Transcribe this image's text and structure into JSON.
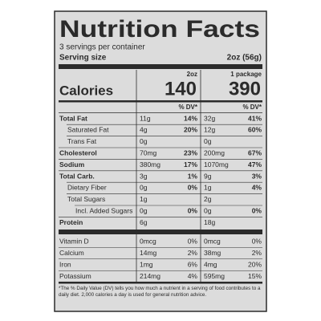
{
  "header": {
    "title": "Nutrition Facts",
    "servings": "3 servings per container",
    "serving_size_label": "Serving size",
    "serving_size": "2oz (56g)"
  },
  "columns": [
    "2oz",
    "1 package"
  ],
  "calories": {
    "label": "Calories",
    "values": [
      "140",
      "390"
    ]
  },
  "dv_header": [
    "% DV*",
    "% DV*"
  ],
  "nutrients": [
    {
      "name": "Total Fat",
      "amounts": [
        "11g",
        "32g"
      ],
      "dv": [
        "14%",
        "41%"
      ]
    },
    {
      "name": "Saturated Fat",
      "amounts": [
        "4g",
        "12g"
      ],
      "dv": [
        "20%",
        "60%"
      ]
    },
    {
      "name": "Trans Fat",
      "amounts": [
        "0g",
        "0g"
      ]
    },
    {
      "name": "Cholesterol",
      "amounts": [
        "70mg",
        "200mg"
      ],
      "dv": [
        "23%",
        "67%"
      ]
    },
    {
      "name": "Sodium",
      "amounts": [
        "380mg",
        "1070mg"
      ],
      "dv": [
        "17%",
        "47%"
      ]
    },
    {
      "name": "Total Carb.",
      "amounts": [
        "3g",
        "9g"
      ],
      "dv": [
        "1%",
        "3%"
      ]
    },
    {
      "name": "Dietary Fiber",
      "amounts": [
        "0g",
        "1g"
      ],
      "dv": [
        "0%",
        "4%"
      ]
    },
    {
      "name": "Total Sugars",
      "amounts": [
        "1g",
        "2g"
      ]
    },
    {
      "name": "Incl. Added Sugars",
      "amounts": [
        "0g",
        "0g"
      ],
      "dv": [
        "0%",
        "0%"
      ]
    },
    {
      "name": "Protein",
      "amounts": [
        "6g",
        "18g"
      ]
    }
  ],
  "vitamins": [
    {
      "name": "Vitamin D",
      "amounts": [
        "0mcg",
        "0mcg"
      ],
      "dv": [
        "0%",
        "0%"
      ]
    },
    {
      "name": "Calcium",
      "amounts": [
        "14mg",
        "38mg"
      ],
      "dv": [
        "2%",
        "2%"
      ]
    },
    {
      "name": "Iron",
      "amounts": [
        "1mg",
        "4mg"
      ],
      "dv": [
        "6%",
        "20%"
      ]
    },
    {
      "name": "Potassium",
      "amounts": [
        "214mg",
        "595mg"
      ],
      "dv": [
        "4%",
        "15%"
      ]
    }
  ],
  "footnote": "*The % Daily Value (DV) tells you how much a nutrient in a serving of food contributes to a daily diet. 2,000 calories a day is used for general nutrition advice."
}
